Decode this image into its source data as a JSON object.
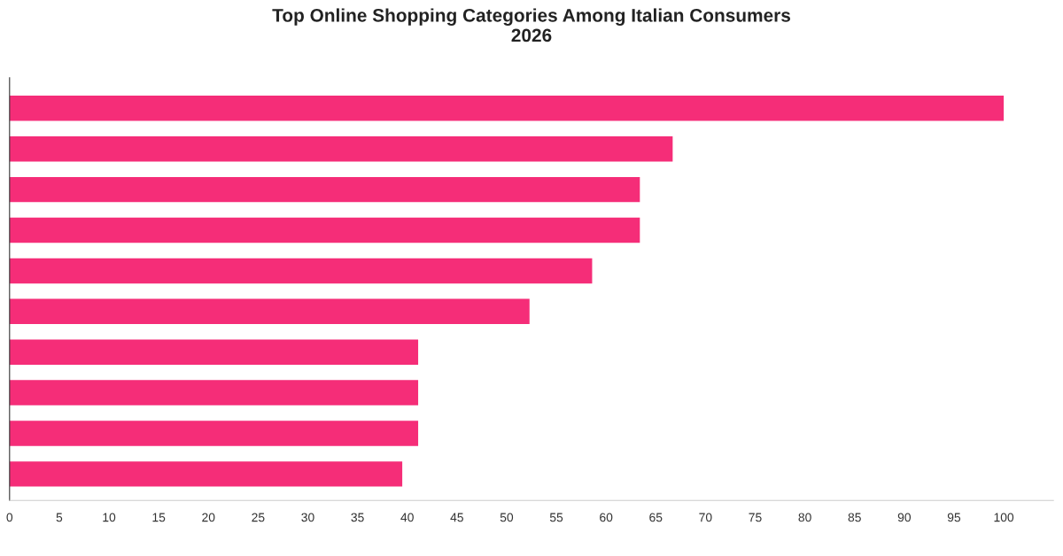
{
  "chart_data": {
    "type": "bar",
    "orientation": "horizontal",
    "title": "Top Online Shopping Categories Among Italian Consumers\n2026",
    "categories": [
      null,
      null,
      null,
      null,
      null,
      null,
      null,
      null,
      null,
      null
    ],
    "values": [
      100,
      66.7,
      63.4,
      63.4,
      58.6,
      52.3,
      41.1,
      41.1,
      41.1,
      39.5
    ],
    "color": "#f52d78",
    "xlim": [
      0,
      105
    ],
    "xticks": [
      0,
      5,
      10,
      15,
      20,
      25,
      30,
      35,
      40,
      45,
      50,
      55,
      60,
      65,
      70,
      75,
      80,
      85,
      90,
      95,
      100
    ],
    "grid": false
  }
}
